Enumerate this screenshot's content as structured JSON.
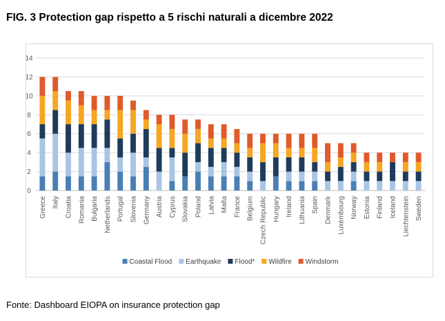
{
  "header": {
    "title": "FIG. 3 Protection gap rispetto a 5 rischi naturali a dicembre 2022"
  },
  "footer": {
    "source": "Fonte: Dashboard EIOPA on insurance protection gap"
  },
  "chart_data": {
    "type": "bar",
    "stacked": true,
    "title": "",
    "xlabel": "",
    "ylabel": "",
    "ylim": [
      0,
      14
    ],
    "yticks": [
      0,
      2,
      4,
      6,
      8,
      10,
      12,
      14
    ],
    "grid": true,
    "legend_position": "bottom",
    "categories": [
      "Greece",
      "Italy",
      "Croatia",
      "Romania",
      "Bulgaria",
      "Netherlands",
      "Portugal",
      "Slovenia",
      "Germany",
      "Austria",
      "Cyprus",
      "Slovakia",
      "Poland",
      "Latvia",
      "Malta",
      "France",
      "Belgium",
      "Czech Republic",
      "Hungary",
      "Ireland",
      "Lithuania",
      "Spain",
      "Denmark",
      "Luxembourg",
      "Norway",
      "Estonia",
      "Finland",
      "Iceland",
      "Liechtenstein",
      "Sweden"
    ],
    "series": [
      {
        "name": "Coastal Flood",
        "color": "#4a7fb5",
        "values": [
          1.5,
          2,
          1.5,
          1.5,
          1.5,
          3,
          2,
          1.5,
          2.5,
          0,
          1,
          1.5,
          2,
          1.5,
          1.5,
          1.5,
          1,
          0,
          1.5,
          1,
          1,
          1,
          0,
          0,
          1,
          0,
          0,
          0,
          0,
          0
        ]
      },
      {
        "name": "Earthquake",
        "color": "#a9c5e3",
        "values": [
          4,
          4,
          2.5,
          3,
          3,
          1.5,
          1.5,
          2.5,
          1,
          2,
          2.5,
          0,
          1,
          1,
          1.5,
          1,
          1,
          1,
          0,
          1,
          1,
          1,
          1,
          1,
          1,
          1,
          1,
          1,
          1,
          1
        ]
      },
      {
        "name": "Flood*",
        "color": "#1f3b5c",
        "values": [
          1.5,
          2.5,
          3,
          2.5,
          2.5,
          3,
          2,
          2,
          3,
          2.5,
          1,
          2.5,
          2,
          2,
          1.5,
          1.5,
          1.5,
          2,
          2,
          1.5,
          1.5,
          1,
          1,
          1.5,
          1,
          1,
          1,
          2,
          1,
          1
        ]
      },
      {
        "name": "Wildfire",
        "color": "#f5a623",
        "values": [
          3,
          2,
          2.5,
          2,
          1.5,
          1,
          3,
          2.5,
          1,
          2.5,
          2,
          2,
          1.5,
          1,
          1,
          1,
          1,
          2,
          1.5,
          1,
          1,
          1.5,
          1,
          1,
          1,
          1,
          1,
          0,
          1,
          1
        ]
      },
      {
        "name": "Windstorm",
        "color": "#e05a2b",
        "values": [
          2,
          1.5,
          1,
          1.5,
          1.5,
          1.5,
          1.5,
          1,
          1,
          1,
          1.5,
          1.5,
          1,
          1.5,
          1.5,
          1.5,
          1.5,
          1,
          1,
          1.5,
          1.5,
          1.5,
          2,
          1.5,
          1,
          1,
          1,
          1,
          1,
          1
        ]
      }
    ]
  }
}
